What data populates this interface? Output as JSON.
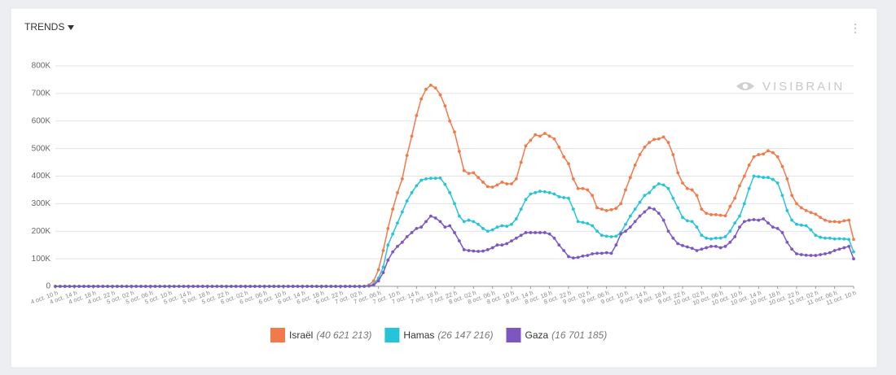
{
  "chart_data": {
    "type": "line",
    "title": "TRENDS",
    "watermark": "VISIBRAIN",
    "ylim": [
      0,
      800000
    ],
    "yticks": [
      0,
      {
        "value": 100000,
        "label": "100K"
      },
      {
        "value": 200000,
        "label": "200K"
      },
      {
        "value": 300000,
        "label": "300K"
      },
      {
        "value": 400000,
        "label": "400K"
      },
      {
        "value": 500000,
        "label": "500K"
      },
      {
        "value": 600000,
        "label": "600K"
      },
      {
        "value": 700000,
        "label": "700K"
      },
      {
        "value": 800000,
        "label": "800K"
      }
    ],
    "grid": true,
    "legend": "bottom",
    "categories": [
      "4 oct. 10 h",
      null,
      null,
      null,
      "4 oct. 14 h",
      null,
      null,
      null,
      "4 oct. 18 h",
      null,
      null,
      null,
      "4 oct. 22 h",
      null,
      null,
      null,
      "5 oct. 02 h",
      null,
      null,
      null,
      "5 oct. 06 h",
      null,
      null,
      null,
      "5 oct. 10 h",
      null,
      null,
      null,
      "5 oct. 14 h",
      null,
      null,
      null,
      "5 oct. 18 h",
      null,
      null,
      null,
      "5 oct. 22 h",
      null,
      null,
      null,
      "6 oct. 02 h",
      null,
      null,
      null,
      "6 oct. 06 h",
      null,
      null,
      null,
      "6 oct. 10 h",
      null,
      null,
      null,
      "6 oct. 14 h",
      null,
      null,
      null,
      "6 oct. 18 h",
      null,
      null,
      null,
      "6 oct. 22 h",
      null,
      null,
      null,
      "7 oct. 02 h",
      null,
      null,
      null,
      "7 oct. 06 h",
      null,
      null,
      null,
      "7 oct. 10 h",
      null,
      null,
      null,
      "7 oct. 14 h",
      null,
      null,
      null,
      "7 oct. 18 h",
      null,
      null,
      null,
      "7 oct. 22 h",
      null,
      null,
      null,
      "8 oct. 02 h",
      null,
      null,
      null,
      "8 oct. 06 h",
      null,
      null,
      null,
      "8 oct. 10 h",
      null,
      null,
      null,
      "8 oct. 14 h",
      null,
      null,
      null,
      "8 oct. 18 h",
      null,
      null,
      null,
      "8 oct. 22 h",
      null,
      null,
      null,
      "9 oct. 02 h",
      null,
      null,
      null,
      "9 oct. 06 h",
      null,
      null,
      null,
      "9 oct. 10 h",
      null,
      null,
      null,
      "9 oct. 14 h",
      null,
      null,
      null,
      "9 oct. 18 h",
      null,
      null,
      null,
      "9 oct. 22 h",
      null,
      null,
      null,
      "10 oct. 02 h",
      null,
      null,
      null,
      "10 oct. 06 h",
      null,
      null,
      null,
      "10 oct. 10 h",
      null,
      null,
      null,
      "10 oct. 14 h",
      null,
      null,
      null,
      "10 oct. 18 h",
      null,
      null,
      null,
      "10 oct. 22 h",
      null,
      null,
      null,
      "11 oct. 02 h",
      null,
      null,
      null,
      "11 oct. 06 h",
      null,
      null,
      null,
      "11 oct. 10 h"
    ],
    "series": [
      {
        "name": "Israël",
        "total_label": "(40 621 213)",
        "color": "#f07a4a",
        "values": [
          0,
          0,
          0,
          0,
          0,
          0,
          0,
          0,
          0,
          0,
          0,
          0,
          0,
          0,
          0,
          0,
          0,
          0,
          0,
          0,
          0,
          0,
          0,
          0,
          0,
          0,
          0,
          0,
          0,
          0,
          0,
          0,
          0,
          0,
          0,
          0,
          0,
          0,
          0,
          0,
          0,
          0,
          0,
          0,
          0,
          0,
          0,
          0,
          0,
          0,
          0,
          0,
          0,
          0,
          0,
          0,
          0,
          0,
          0,
          0,
          0,
          0,
          0,
          0,
          0,
          0,
          5000,
          20000,
          60000,
          130000,
          210000,
          280000,
          340000,
          390000,
          475000,
          545000,
          620000,
          680000,
          715000,
          730000,
          720000,
          695000,
          655000,
          600000,
          560000,
          490000,
          420000,
          410000,
          412000,
          395000,
          378000,
          362000,
          360000,
          368000,
          378000,
          372000,
          372000,
          390000,
          450000,
          510000,
          530000,
          550000,
          545000,
          555000,
          545000,
          535000,
          505000,
          470000,
          445000,
          390000,
          355000,
          355000,
          350000,
          330000,
          285000,
          280000,
          275000,
          278000,
          283000,
          300000,
          350000,
          395000,
          440000,
          478000,
          505000,
          522000,
          533000,
          535000,
          542000,
          522000,
          478000,
          412000,
          375000,
          355000,
          350000,
          330000,
          280000,
          265000,
          260000,
          260000,
          258000,
          256000,
          290000,
          320000,
          365000,
          400000,
          440000,
          470000,
          478000,
          480000,
          492000,
          485000,
          470000,
          435000,
          390000,
          330000,
          300000,
          285000,
          275000,
          268000,
          262000,
          250000,
          240000,
          235000,
          235000,
          233000,
          238000,
          240000,
          170000
        ]
      },
      {
        "name": "Hamas",
        "total_label": "(26 147 216)",
        "color": "#26c4d8",
        "values": [
          0,
          0,
          0,
          0,
          0,
          0,
          0,
          0,
          0,
          0,
          0,
          0,
          0,
          0,
          0,
          0,
          0,
          0,
          0,
          0,
          0,
          0,
          0,
          0,
          0,
          0,
          0,
          0,
          0,
          0,
          0,
          0,
          0,
          0,
          0,
          0,
          0,
          0,
          0,
          0,
          0,
          0,
          0,
          0,
          0,
          0,
          0,
          0,
          0,
          0,
          0,
          0,
          0,
          0,
          0,
          0,
          0,
          0,
          0,
          0,
          0,
          0,
          0,
          0,
          0,
          0,
          2000,
          8000,
          30000,
          70000,
          150000,
          190000,
          230000,
          270000,
          310000,
          340000,
          365000,
          385000,
          390000,
          392000,
          392000,
          393000,
          370000,
          340000,
          300000,
          255000,
          235000,
          240000,
          235000,
          225000,
          210000,
          200000,
          205000,
          215000,
          220000,
          218000,
          225000,
          245000,
          280000,
          315000,
          335000,
          340000,
          345000,
          343000,
          340000,
          335000,
          325000,
          322000,
          320000,
          280000,
          235000,
          232000,
          228000,
          220000,
          200000,
          185000,
          182000,
          180000,
          182000,
          195000,
          225000,
          255000,
          280000,
          305000,
          330000,
          340000,
          360000,
          372000,
          368000,
          355000,
          320000,
          285000,
          250000,
          238000,
          235000,
          215000,
          185000,
          175000,
          172000,
          175000,
          175000,
          180000,
          200000,
          230000,
          255000,
          300000,
          355000,
          400000,
          398000,
          395000,
          395000,
          388000,
          375000,
          330000,
          275000,
          240000,
          225000,
          222000,
          220000,
          205000,
          185000,
          178000,
          175000,
          175000,
          172000,
          173000,
          172000,
          170000,
          125000
        ]
      },
      {
        "name": "Gaza",
        "total_label": "(16 701 185)",
        "color": "#7d56c1",
        "values": [
          0,
          0,
          0,
          0,
          0,
          0,
          0,
          0,
          0,
          0,
          0,
          0,
          0,
          0,
          0,
          0,
          0,
          0,
          0,
          0,
          0,
          0,
          0,
          0,
          0,
          0,
          0,
          0,
          0,
          0,
          0,
          0,
          0,
          0,
          0,
          0,
          0,
          0,
          0,
          0,
          0,
          0,
          0,
          0,
          0,
          0,
          0,
          0,
          0,
          0,
          0,
          0,
          0,
          0,
          0,
          0,
          0,
          0,
          0,
          0,
          0,
          0,
          0,
          0,
          0,
          0,
          1000,
          5000,
          20000,
          50000,
          95000,
          125000,
          145000,
          160000,
          180000,
          195000,
          210000,
          215000,
          235000,
          255000,
          248000,
          235000,
          215000,
          220000,
          195000,
          165000,
          133000,
          130000,
          128000,
          127000,
          128000,
          133000,
          140000,
          150000,
          150000,
          155000,
          165000,
          175000,
          185000,
          195000,
          195000,
          195000,
          195000,
          195000,
          190000,
          175000,
          150000,
          130000,
          108000,
          103000,
          105000,
          110000,
          112000,
          118000,
          120000,
          120000,
          122000,
          120000,
          150000,
          190000,
          200000,
          215000,
          235000,
          255000,
          270000,
          285000,
          280000,
          265000,
          240000,
          200000,
          175000,
          155000,
          148000,
          143000,
          138000,
          130000,
          135000,
          140000,
          145000,
          145000,
          140000,
          145000,
          160000,
          180000,
          215000,
          235000,
          240000,
          242000,
          240000,
          245000,
          230000,
          215000,
          210000,
          195000,
          160000,
          135000,
          118000,
          115000,
          113000,
          112000,
          112000,
          115000,
          118000,
          122000,
          130000,
          135000,
          140000,
          145000,
          100000
        ]
      }
    ]
  }
}
